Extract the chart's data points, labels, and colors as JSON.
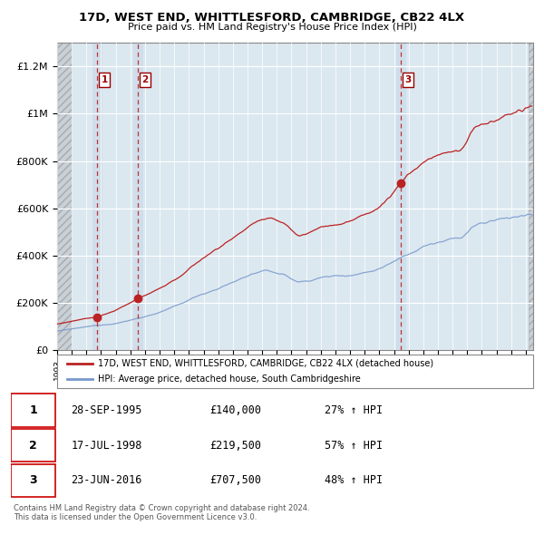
{
  "title": "17D, WEST END, WHITTLESFORD, CAMBRIDGE, CB22 4LX",
  "subtitle": "Price paid vs. HM Land Registry's House Price Index (HPI)",
  "legend_line1": "17D, WEST END, WHITTLESFORD, CAMBRIDGE, CB22 4LX (detached house)",
  "legend_line2": "HPI: Average price, detached house, South Cambridgeshire",
  "footer1": "Contains HM Land Registry data © Crown copyright and database right 2024.",
  "footer2": "This data is licensed under the Open Government Licence v3.0.",
  "sales": [
    {
      "num": 1,
      "date_label": "28-SEP-1995",
      "date_x": 1995.75,
      "price": 140000,
      "pct": "27% ↑ HPI"
    },
    {
      "num": 2,
      "date_label": "17-JUL-1998",
      "date_x": 1998.54,
      "price": 219500,
      "pct": "57% ↑ HPI"
    },
    {
      "num": 3,
      "date_label": "23-JUN-2016",
      "date_x": 2016.48,
      "price": 707500,
      "pct": "48% ↑ HPI"
    }
  ],
  "table_rows": [
    {
      "num": 1,
      "date": "28-SEP-1995",
      "price": "£140,000",
      "pct": "27% ↑ HPI"
    },
    {
      "num": 2,
      "date": "17-JUL-1998",
      "price": "£219,500",
      "pct": "57% ↑ HPI"
    },
    {
      "num": 3,
      "date": "23-JUN-2016",
      "price": "£707,500",
      "pct": "48% ↑ HPI"
    }
  ],
  "property_color": "#bb2222",
  "hpi_color": "#7799cc",
  "ylim": [
    0,
    1300000
  ],
  "xlim_start": 1993.0,
  "xlim_end": 2025.5,
  "hatch_end": 1994.0,
  "hatch_right_start": 2025.17,
  "yticks": [
    0,
    200000,
    400000,
    600000,
    800000,
    1000000,
    1200000
  ],
  "ytick_labels": [
    "£0",
    "£200K",
    "£400K",
    "£600K",
    "£800K",
    "£1M",
    "£1.2M"
  ],
  "bg_color": "#e8eef4",
  "plot_bg_color": "#dce8f0"
}
